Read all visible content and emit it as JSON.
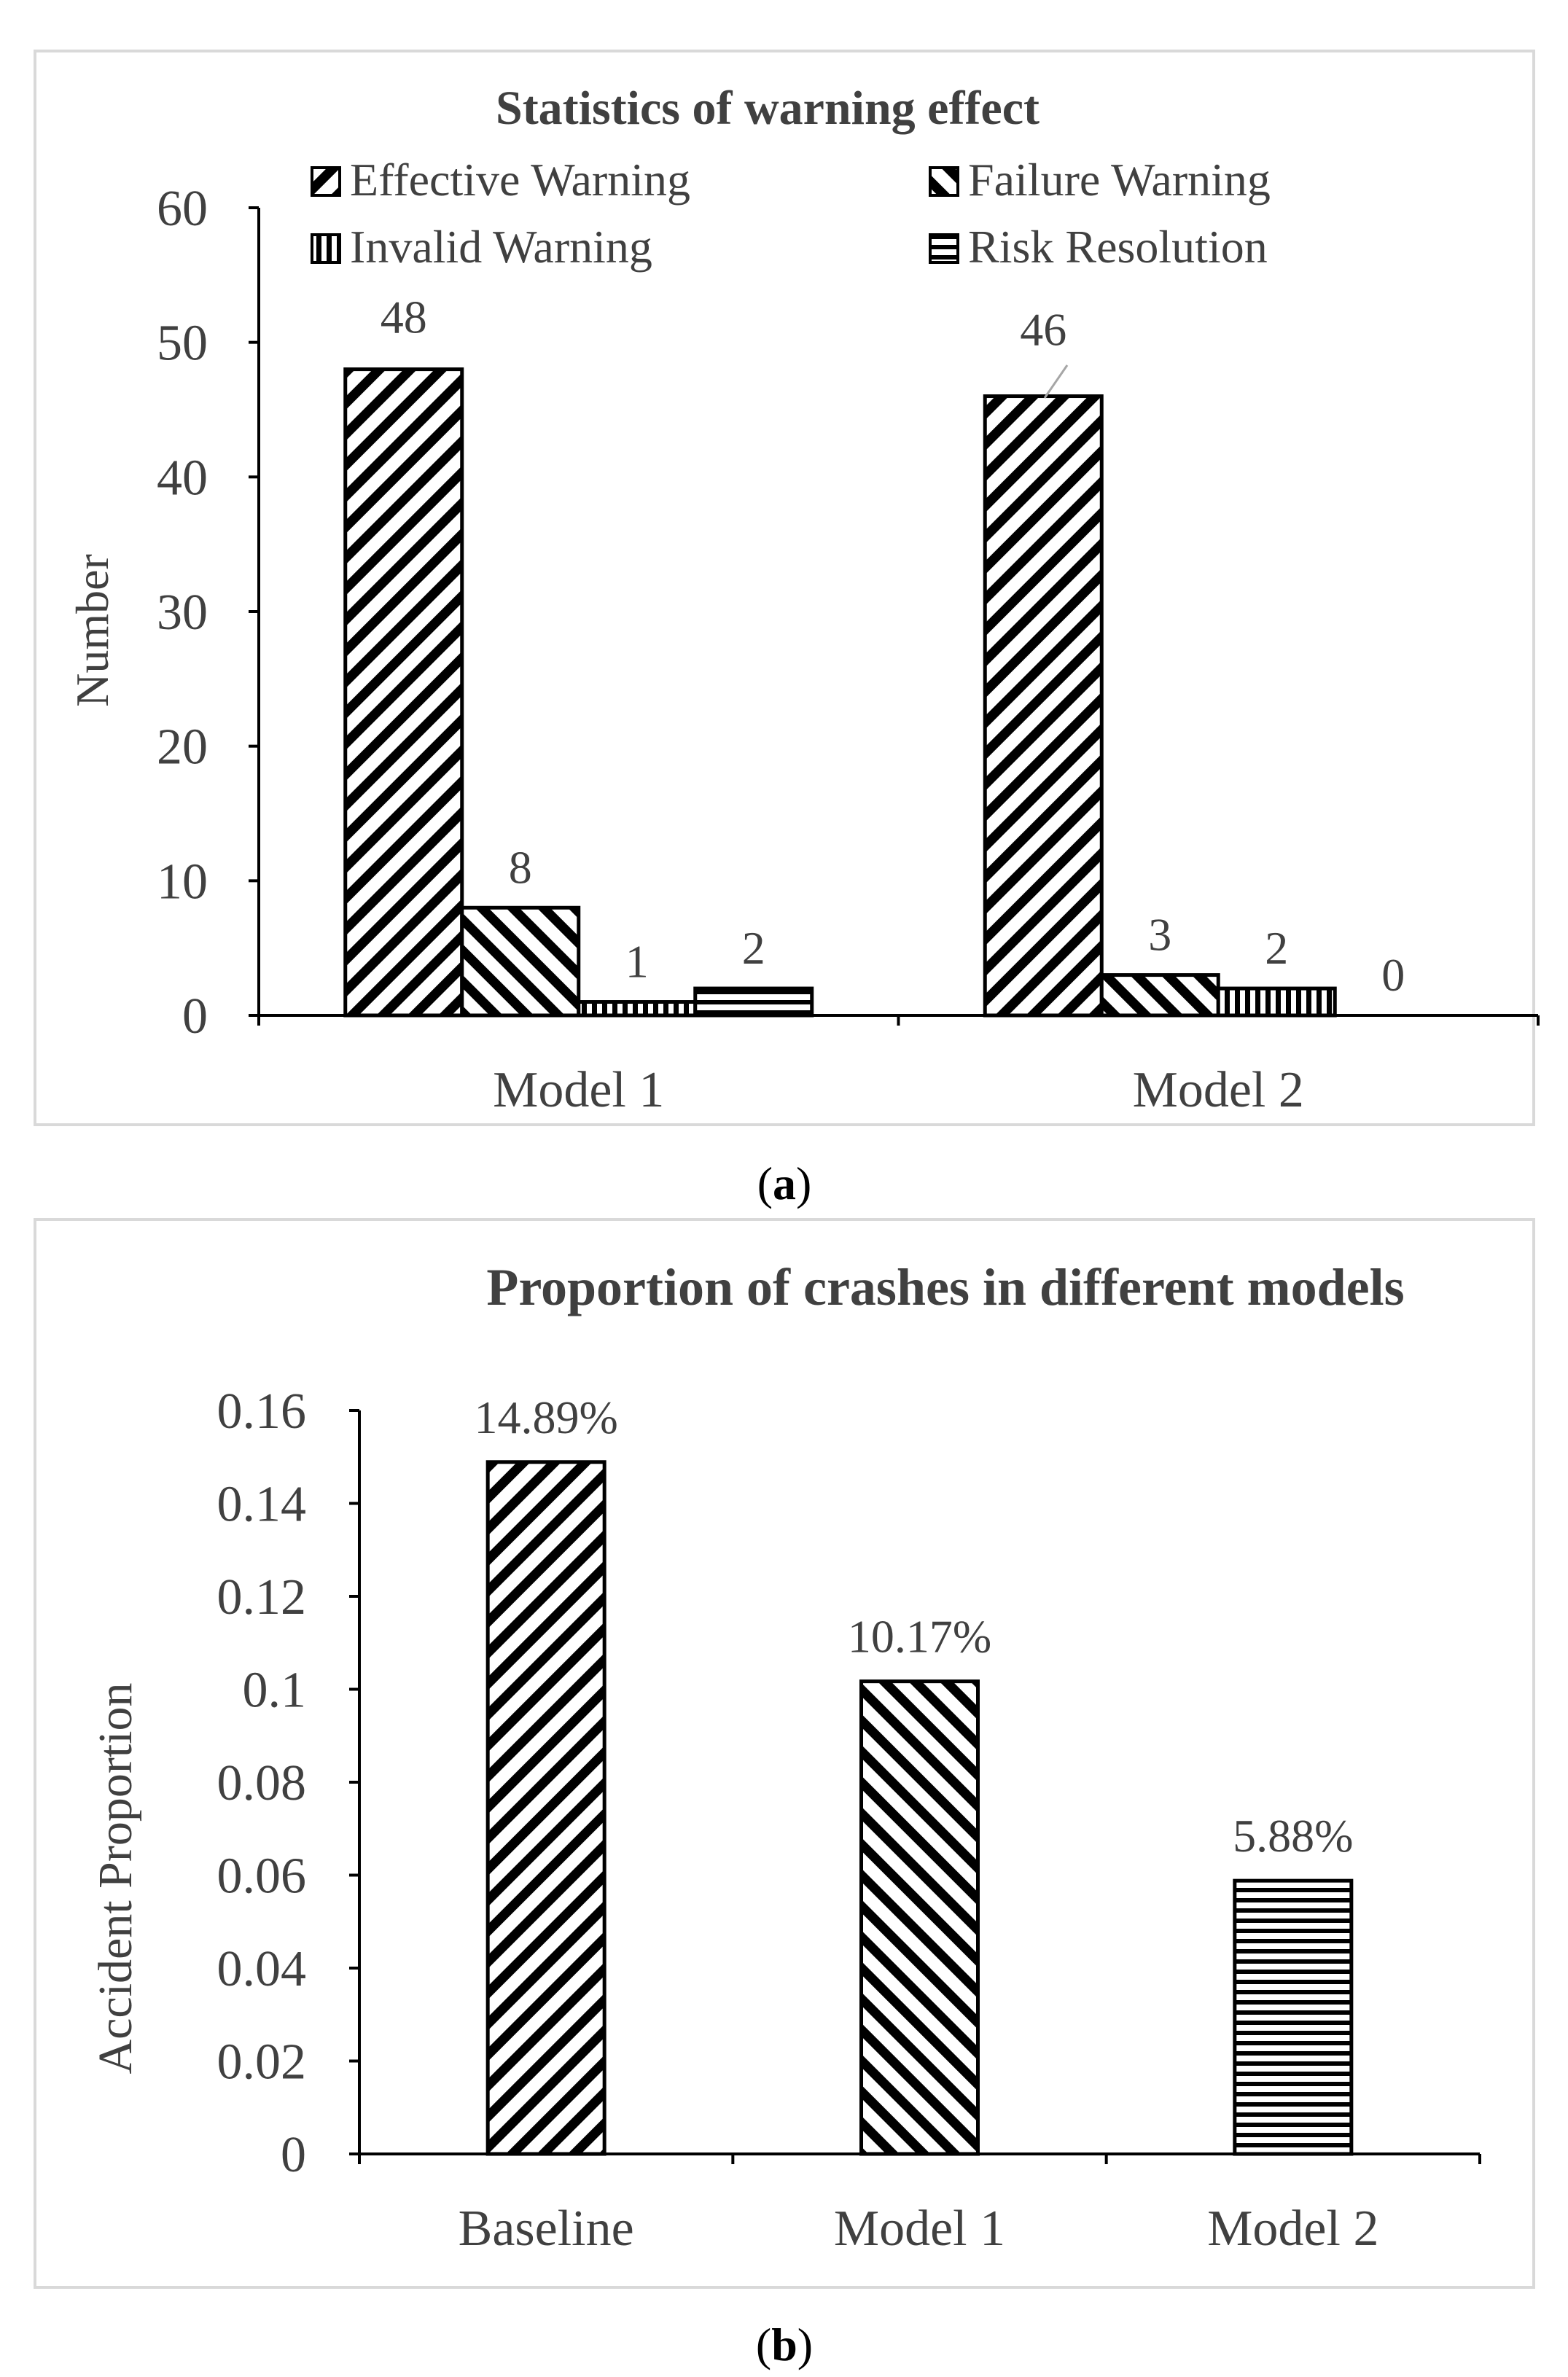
{
  "chart_data": [
    {
      "type": "bar",
      "title": "Statistics of  warning effect",
      "ylabel": "Number",
      "xlabel": "",
      "ylim": [
        0,
        60
      ],
      "yticks": [
        "0",
        "10",
        "20",
        "30",
        "40",
        "50",
        "60"
      ],
      "categories": [
        "Model 1",
        "Model 2"
      ],
      "legend_position": "top",
      "series": [
        {
          "name": "Effective Warning",
          "values": [
            48,
            46
          ],
          "labels": [
            "48",
            "46"
          ]
        },
        {
          "name": "Failure Warning",
          "values": [
            8,
            3
          ],
          "labels": [
            "8",
            "3"
          ]
        },
        {
          "name": "Invalid Warning",
          "values": [
            1,
            2
          ],
          "labels": [
            "1",
            "2"
          ]
        },
        {
          "name": "Risk Resolution",
          "values": [
            2,
            0
          ],
          "labels": [
            "2",
            "0"
          ]
        }
      ],
      "caption_open": "(",
      "caption_letter": "a",
      "caption_close": ")"
    },
    {
      "type": "bar",
      "title": "Proportion of  crashes in different models",
      "ylabel": "Accident Proportion",
      "xlabel": "",
      "ylim": [
        0,
        0.16
      ],
      "yticks": [
        "0",
        "0.02",
        "0.04",
        "0.06",
        "0.08",
        "0.1",
        "0.12",
        "0.14",
        "0.16"
      ],
      "categories": [
        "Baseline",
        "Model 1",
        "Model 2"
      ],
      "values": [
        0.1489,
        0.1017,
        0.0588
      ],
      "labels": [
        "14.89%",
        "10.17%",
        "5.88%"
      ],
      "caption_open": "(",
      "caption_letter": "b",
      "caption_close": ")"
    }
  ],
  "colors": {
    "border": "#d9d9d9",
    "axis": "#000000",
    "text": "#404040"
  }
}
